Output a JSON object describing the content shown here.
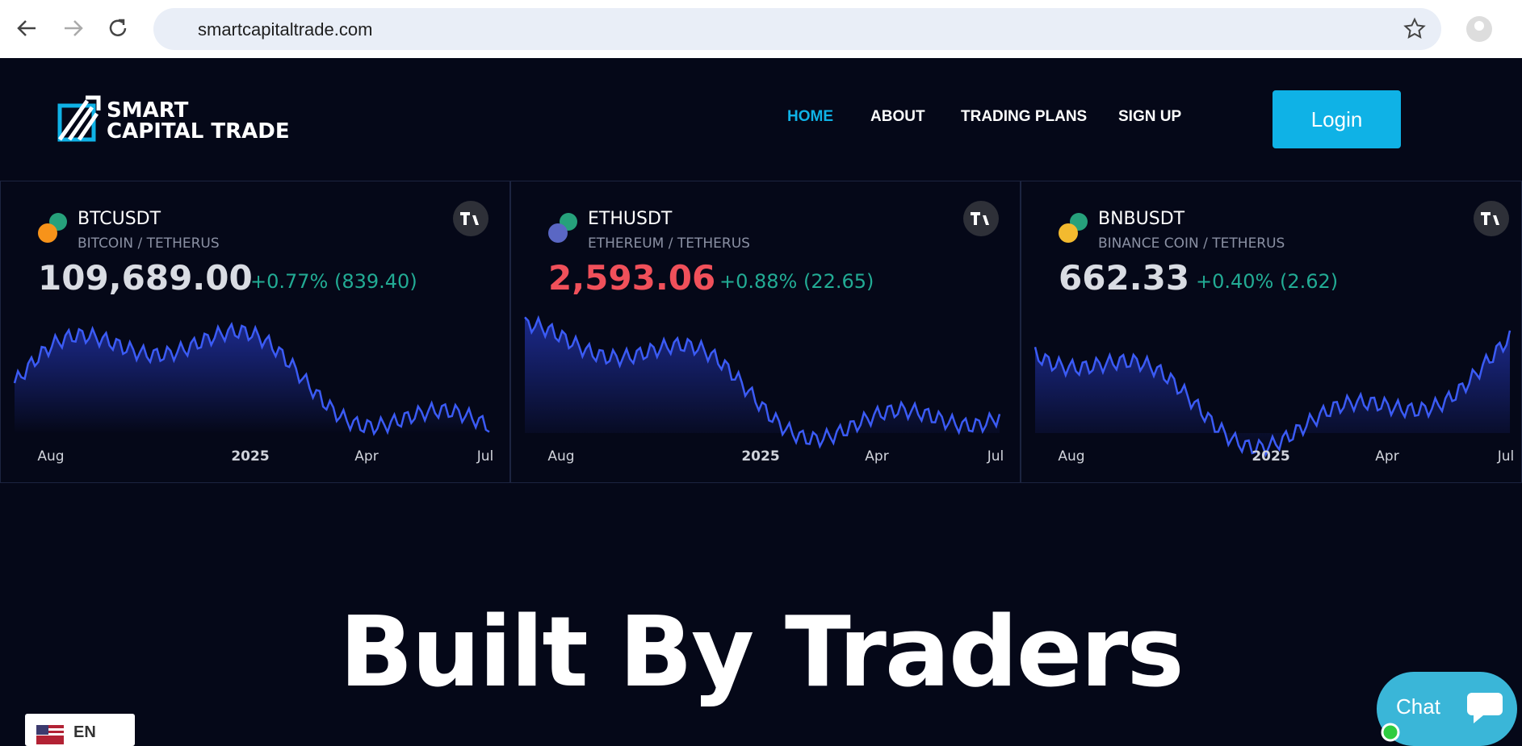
{
  "browser": {
    "url": "smartcapitaltrade.com"
  },
  "nav": {
    "brand": [
      "SMART",
      "CAPITAL TRADE"
    ],
    "links": [
      "HOME",
      "ABOUT",
      "TRADING PLANS",
      "SIGN UP"
    ],
    "login": "Login"
  },
  "tickers": [
    {
      "symbol": "BTCUSDT",
      "name": "BITCOIN / TETHERUS",
      "price": "109,689.00",
      "change": "+0.77% (839.40)",
      "price_color": "#d9dce3",
      "icon_color": "#f7931a"
    },
    {
      "symbol": "ETHUSDT",
      "name": "ETHEREUM / TETHERUS",
      "price": "2,593.06",
      "change": "+0.88% (22.65)",
      "price_color": "#f0505a",
      "icon_color": "#5a67c4"
    },
    {
      "symbol": "BNBUSDT",
      "name": "BINANCE COIN / TETHERUS",
      "price": "662.33",
      "change": "+0.40% (2.62)",
      "price_color": "#d9dce3",
      "icon_color": "#f3ba2f"
    }
  ],
  "ticker_axis": [
    "Aug",
    "2025",
    "Apr",
    "Jul"
  ],
  "hero": {
    "title": "Built By Traders"
  },
  "chat": "Chat",
  "language": "EN"
}
